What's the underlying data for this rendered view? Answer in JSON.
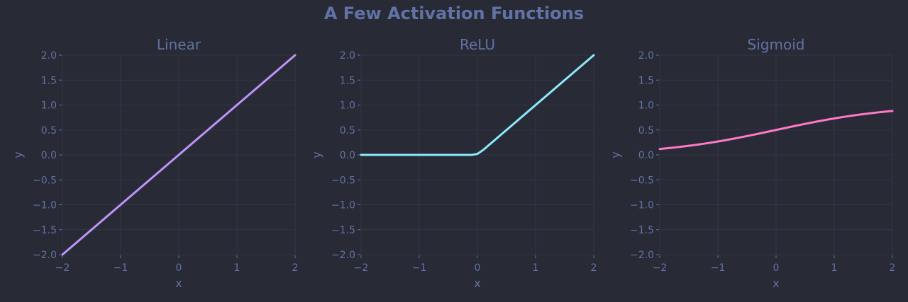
{
  "figure": {
    "title": "A Few Activation Functions",
    "colors": {
      "background": "#282a36",
      "text": "#6272a4",
      "grid": "#363949"
    }
  },
  "chart_data": [
    {
      "type": "line",
      "title": "Linear",
      "xlabel": "x",
      "ylabel": "y",
      "xlim": [
        -2,
        2
      ],
      "ylim": [
        -2,
        2
      ],
      "xticks": [
        -2,
        -1,
        0,
        1,
        2
      ],
      "xtick_labels": [
        "−2",
        "−1",
        "0",
        "1",
        "2"
      ],
      "yticks": [
        -2,
        -1.5,
        -1,
        -0.5,
        0,
        0.5,
        1,
        1.5,
        2
      ],
      "ytick_labels": [
        "−2.0",
        "−1.5",
        "−1.0",
        "−0.5",
        "0.0",
        "0.5",
        "1.0",
        "1.5",
        "2.0"
      ],
      "grid": true,
      "series": [
        {
          "color": "#bd93f9",
          "x": [
            -2,
            -1,
            0,
            1,
            2
          ],
          "y": [
            -2,
            -1,
            0,
            1,
            2
          ]
        }
      ]
    },
    {
      "type": "line",
      "title": "ReLU",
      "xlabel": "x",
      "ylabel": "y",
      "xlim": [
        -2,
        2
      ],
      "ylim": [
        -2,
        2
      ],
      "xticks": [
        -2,
        -1,
        0,
        1,
        2
      ],
      "xtick_labels": [
        "−2",
        "−1",
        "0",
        "1",
        "2"
      ],
      "yticks": [
        -2,
        -1.5,
        -1,
        -0.5,
        0,
        0.5,
        1,
        1.5,
        2
      ],
      "ytick_labels": [
        "−2.0",
        "−1.5",
        "−1.0",
        "−0.5",
        "0.0",
        "0.5",
        "1.0",
        "1.5",
        "2.0"
      ],
      "grid": true,
      "series": [
        {
          "color": "#8be9fd",
          "x": [
            -2,
            -1,
            -0.1,
            0,
            0.1,
            1,
            2
          ],
          "y": [
            0,
            0,
            0,
            0.02,
            0.1,
            1,
            2
          ]
        }
      ]
    },
    {
      "type": "line",
      "title": "Sigmoid",
      "xlabel": "x",
      "ylabel": "y",
      "xlim": [
        -2,
        2
      ],
      "ylim": [
        -2,
        2
      ],
      "xticks": [
        -2,
        -1,
        0,
        1,
        2
      ],
      "xtick_labels": [
        "−2",
        "−1",
        "0",
        "1",
        "2"
      ],
      "yticks": [
        -2,
        -1.5,
        -1,
        -0.5,
        0,
        0.5,
        1,
        1.5,
        2
      ],
      "ytick_labels": [
        "−2.0",
        "−1.5",
        "−1.0",
        "−0.5",
        "0.0",
        "0.5",
        "1.0",
        "1.5",
        "2.0"
      ],
      "grid": true,
      "series": [
        {
          "color": "#ff79c6",
          "x": [
            -2,
            -1.5,
            -1,
            -0.5,
            0,
            0.5,
            1,
            1.5,
            2
          ],
          "y": [
            0.12,
            0.18,
            0.27,
            0.38,
            0.5,
            0.62,
            0.73,
            0.82,
            0.88
          ]
        }
      ]
    }
  ]
}
